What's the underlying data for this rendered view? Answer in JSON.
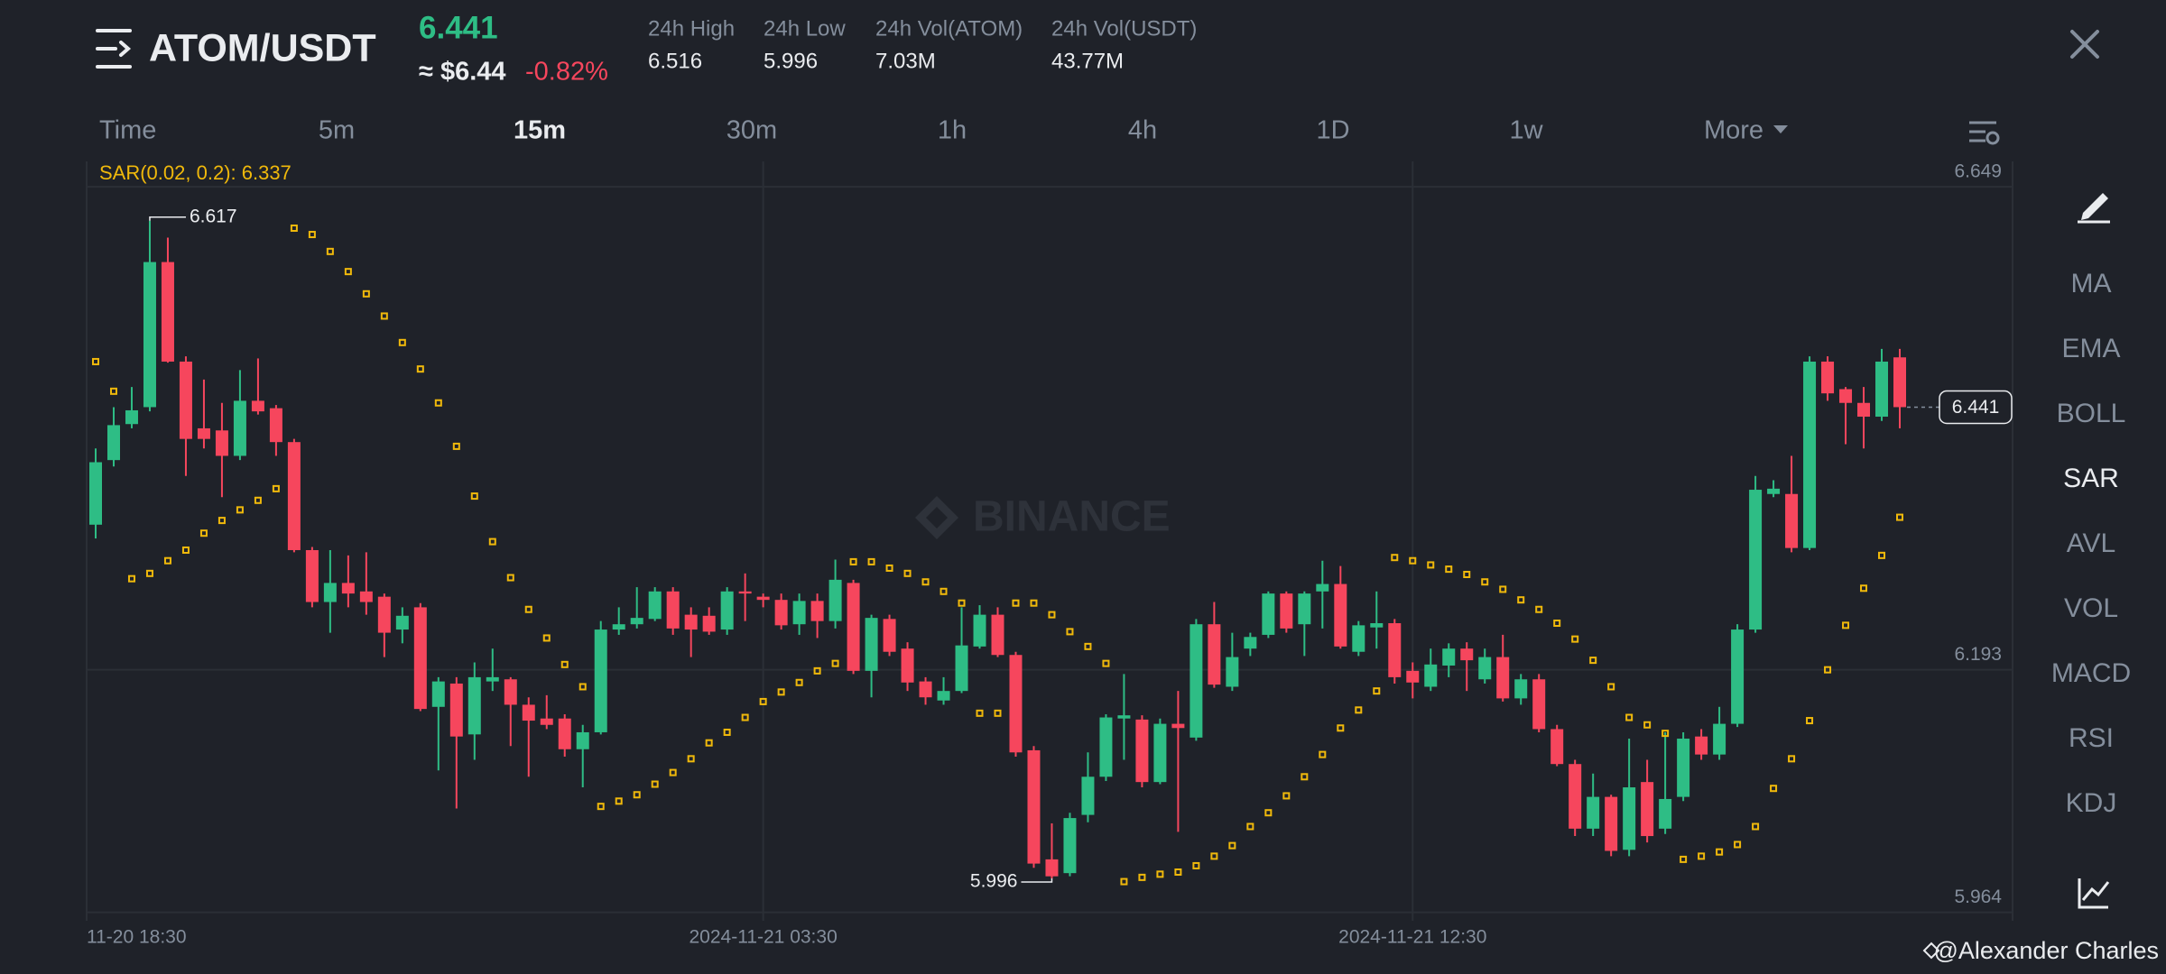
{
  "header": {
    "pair": "ATOM/USDT",
    "price": "6.441",
    "price_usd": "≈ $6.44",
    "change": "-0.82%",
    "stats": [
      {
        "label": "24h High",
        "value": "6.516"
      },
      {
        "label": "24h Low",
        "value": "5.996"
      },
      {
        "label": "24h Vol(ATOM)",
        "value": "7.03M"
      },
      {
        "label": "24h Vol(USDT)",
        "value": "43.77M"
      }
    ]
  },
  "timeframes": [
    "Time",
    "5m",
    "15m",
    "30m",
    "1h",
    "4h",
    "1D",
    "1w",
    "More"
  ],
  "active_timeframe": "15m",
  "indicators": [
    "MA",
    "EMA",
    "BOLL",
    "SAR",
    "AVL",
    "VOL",
    "MACD",
    "RSI",
    "KDJ"
  ],
  "active_indicator": "SAR",
  "watermark": "BINANCE",
  "credit": "@Alexander Charles",
  "chart_data": {
    "type": "candlestick",
    "sar_label": "SAR(0.02, 0.2): 6.337",
    "up_color": "#2ebd85",
    "down_color": "#f6465d",
    "sar_color": "#f0b90b",
    "ylim": [
      5.956,
      6.673
    ],
    "yticks": [
      6.649,
      6.193,
      5.964
    ],
    "grid": true,
    "x": [
      null,
      "11-20 18:30",
      null,
      null,
      null,
      null,
      null,
      null,
      null,
      null,
      null,
      null,
      null,
      null,
      null,
      null,
      null,
      null,
      null,
      null,
      null,
      null,
      null,
      null,
      null,
      null,
      null,
      null,
      null,
      null,
      null,
      null,
      null,
      null,
      null,
      null,
      null,
      "2024-11-21 03:30",
      null,
      null,
      null,
      null,
      null,
      null,
      null,
      null,
      null,
      null,
      null,
      null,
      null,
      null,
      null,
      null,
      null,
      null,
      null,
      null,
      null,
      null,
      null,
      null,
      null,
      null,
      null,
      null,
      null,
      null,
      null,
      null,
      null,
      null,
      null,
      "2024-11-21 12:30",
      null,
      null,
      null,
      null,
      null,
      null,
      null,
      null,
      null,
      null,
      null,
      null,
      null,
      null,
      null,
      null,
      null,
      null,
      null,
      null,
      null,
      null,
      null,
      null,
      null,
      null,
      null
    ],
    "open": [
      6.33,
      6.391,
      6.425,
      6.441,
      6.578,
      6.484,
      6.421,
      6.419,
      6.395,
      6.447,
      6.44,
      6.408,
      6.306,
      6.257,
      6.275,
      6.267,
      6.262,
      6.231,
      6.252,
      6.158,
      6.18,
      6.132,
      6.182,
      6.184,
      6.16,
      6.147,
      6.147,
      6.118,
      6.134,
      6.231,
      6.236,
      6.241,
      6.267,
      6.245,
      6.244,
      6.231,
      6.267,
      6.262,
      6.259,
      6.236,
      6.258,
      6.239,
      6.275,
      6.192,
      6.241,
      6.213,
      6.182,
      6.164,
      6.173,
      6.215,
      6.245,
      6.207,
      6.117,
      6.014,
      6.001,
      6.056,
      6.092,
      6.147,
      6.146,
      6.087,
      6.142,
      6.129,
      6.236,
      6.177,
      6.213,
      6.226,
      6.265,
      6.236,
      6.267,
      6.274,
      6.21,
      6.233,
      6.237,
      6.192,
      6.177,
      6.197,
      6.213,
      6.184,
      6.205,
      6.166,
      6.184,
      6.137,
      6.104,
      6.043,
      6.073,
      6.023,
      6.087,
      6.043,
      6.073,
      6.13,
      6.113,
      6.142,
      6.231,
      6.359,
      6.359,
      6.308,
      6.484,
      6.458,
      6.445,
      6.432,
      6.488
    ],
    "high": [
      6.402,
      6.441,
      6.46,
      6.617,
      6.601,
      6.489,
      6.467,
      6.445,
      6.476,
      6.487,
      6.443,
      6.411,
      6.309,
      6.306,
      6.301,
      6.304,
      6.265,
      6.252,
      6.256,
      6.186,
      6.186,
      6.2,
      6.213,
      6.186,
      6.167,
      6.169,
      6.151,
      6.141,
      6.239,
      6.252,
      6.271,
      6.271,
      6.271,
      6.252,
      6.252,
      6.271,
      6.284,
      6.265,
      6.265,
      6.265,
      6.265,
      6.297,
      6.278,
      6.245,
      6.245,
      6.219,
      6.186,
      6.186,
      6.252,
      6.254,
      6.252,
      6.21,
      6.121,
      6.048,
      6.058,
      6.115,
      6.151,
      6.189,
      6.15,
      6.147,
      6.173,
      6.241,
      6.257,
      6.228,
      6.228,
      6.267,
      6.267,
      6.267,
      6.296,
      6.291,
      6.239,
      6.267,
      6.241,
      6.2,
      6.213,
      6.218,
      6.219,
      6.213,
      6.226,
      6.189,
      6.189,
      6.141,
      6.108,
      6.095,
      6.075,
      6.128,
      6.108,
      6.134,
      6.134,
      6.137,
      6.158,
      6.236,
      6.376,
      6.372,
      6.395,
      6.489,
      6.489,
      6.46,
      6.46,
      6.496,
      6.496
    ],
    "low": [
      6.317,
      6.385,
      6.421,
      6.437,
      6.483,
      6.376,
      6.402,
      6.356,
      6.391,
      6.434,
      6.395,
      6.304,
      6.252,
      6.228,
      6.252,
      6.245,
      6.205,
      6.218,
      6.154,
      6.098,
      6.062,
      6.108,
      6.173,
      6.121,
      6.092,
      6.137,
      6.111,
      6.082,
      6.132,
      6.226,
      6.232,
      6.239,
      6.226,
      6.205,
      6.226,
      6.226,
      6.239,
      6.252,
      6.231,
      6.226,
      6.223,
      6.232,
      6.189,
      6.167,
      6.206,
      6.173,
      6.16,
      6.16,
      6.171,
      6.213,
      6.205,
      6.111,
      6.006,
      5.996,
      5.998,
      6.049,
      6.088,
      6.108,
      6.082,
      6.085,
      6.04,
      6.126,
      6.176,
      6.173,
      6.206,
      6.223,
      6.228,
      6.206,
      6.232,
      6.213,
      6.206,
      6.213,
      6.18,
      6.166,
      6.173,
      6.186,
      6.173,
      6.18,
      6.163,
      6.16,
      6.134,
      6.102,
      6.036,
      6.036,
      6.017,
      6.017,
      6.03,
      6.038,
      6.069,
      6.108,
      6.108,
      6.139,
      6.228,
      6.356,
      6.304,
      6.306,
      6.447,
      6.406,
      6.402,
      6.428,
      6.421
    ],
    "close": [
      6.389,
      6.424,
      6.438,
      6.578,
      6.484,
      6.411,
      6.411,
      6.395,
      6.447,
      6.437,
      6.408,
      6.306,
      6.257,
      6.275,
      6.265,
      6.257,
      6.228,
      6.244,
      6.156,
      6.182,
      6.13,
      6.186,
      6.186,
      6.16,
      6.145,
      6.141,
      6.118,
      6.134,
      6.231,
      6.236,
      6.242,
      6.267,
      6.232,
      6.231,
      6.229,
      6.267,
      6.265,
      6.259,
      6.235,
      6.258,
      6.239,
      6.278,
      6.192,
      6.242,
      6.21,
      6.181,
      6.167,
      6.173,
      6.216,
      6.245,
      6.207,
      6.115,
      6.01,
      5.998,
      6.053,
      6.092,
      6.148,
      6.15,
      6.087,
      6.142,
      6.138,
      6.236,
      6.179,
      6.205,
      6.224,
      6.265,
      6.232,
      6.265,
      6.274,
      6.215,
      6.235,
      6.237,
      6.186,
      6.181,
      6.198,
      6.213,
      6.202,
      6.205,
      6.166,
      6.184,
      6.137,
      6.104,
      6.043,
      6.073,
      6.022,
      6.082,
      6.036,
      6.071,
      6.128,
      6.113,
      6.142,
      6.231,
      6.363,
      6.364,
      6.308,
      6.484,
      6.454,
      6.445,
      6.432,
      6.484,
      6.441
    ],
    "sar": [
      6.484,
      6.456,
      6.279,
      6.284,
      6.296,
      6.306,
      6.322,
      6.334,
      6.344,
      6.353,
      6.364,
      6.61,
      6.604,
      6.588,
      6.569,
      6.548,
      6.527,
      6.502,
      6.477,
      6.445,
      6.404,
      6.357,
      6.314,
      6.28,
      6.25,
      6.223,
      6.198,
      6.177,
      6.064,
      6.069,
      6.075,
      6.085,
      6.096,
      6.109,
      6.124,
      6.134,
      6.148,
      6.163,
      6.172,
      6.181,
      6.192,
      6.199,
      6.295,
      6.295,
      6.289,
      6.284,
      6.276,
      6.267,
      6.256,
      6.152,
      6.152,
      6.256,
      6.256,
      6.245,
      6.229,
      6.215,
      6.199,
      5.993,
      5.997,
      6.0,
      6.002,
      6.008,
      6.017,
      6.027,
      6.045,
      6.058,
      6.074,
      6.092,
      6.113,
      6.138,
      6.155,
      6.173,
      6.299,
      6.296,
      6.292,
      6.288,
      6.283,
      6.276,
      6.269,
      6.259,
      6.25,
      6.237,
      6.222,
      6.202,
      6.177,
      6.148,
      6.141,
      6.133,
      6.014,
      6.017,
      6.021,
      6.028,
      6.045,
      6.081,
      6.109,
      6.145,
      6.193,
      6.235,
      6.27,
      6.301,
      6.337
    ]
  }
}
